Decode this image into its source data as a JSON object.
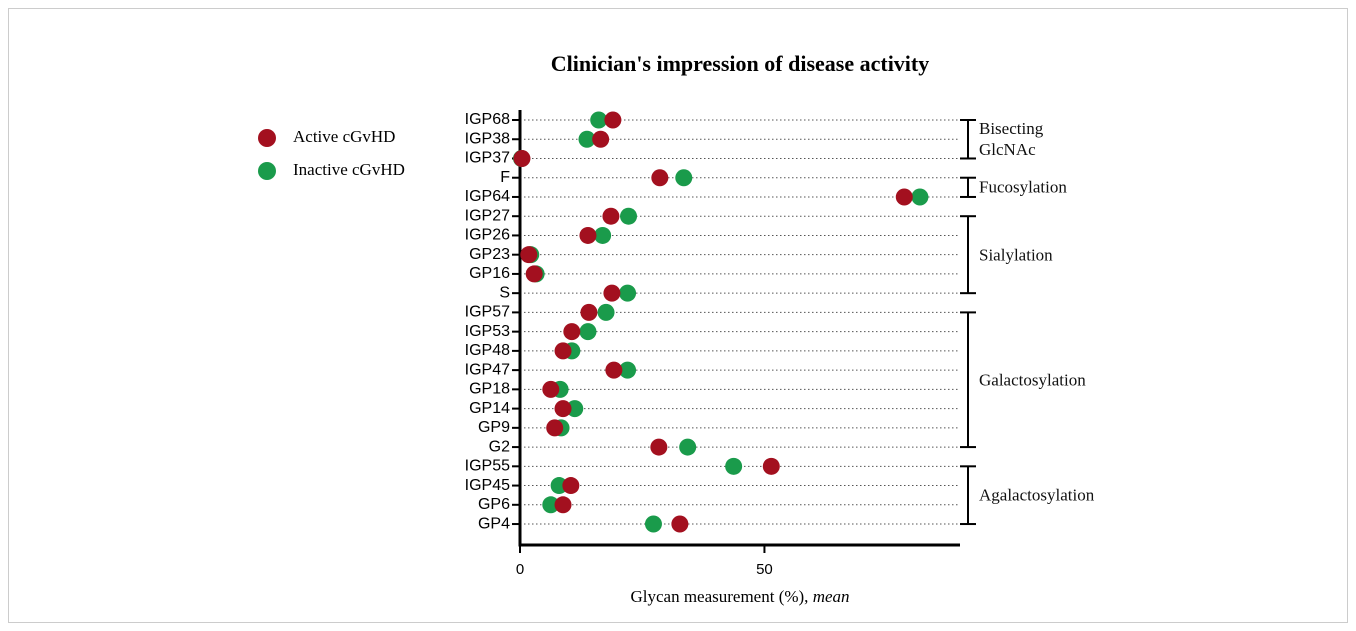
{
  "chart_data": {
    "type": "dot",
    "title": "Clinician's impression of disease activity",
    "x_label": "Glycan measurement (%),",
    "x_label_stat": "mean",
    "categories": [
      "IGP68",
      "IGP38",
      "IGP37",
      "F",
      "IGP64",
      "IGP27",
      "IGP26",
      "GP23",
      "GP16",
      "S",
      "IGP57",
      "IGP53",
      "IGP48",
      "IGP47",
      "GP18",
      "GP14",
      "GP9",
      "G2",
      "IGP55",
      "IGP45",
      "GP6",
      "GP4"
    ],
    "series": [
      {
        "name": "Inactive cGvHD",
        "color": "#1a9b4b",
        "values": [
          16.1,
          13.7,
          0.3,
          33.5,
          81.8,
          22.2,
          16.9,
          2.2,
          3.3,
          22.0,
          17.6,
          13.9,
          10.6,
          22.0,
          8.2,
          11.2,
          8.4,
          34.3,
          43.7,
          8.0,
          6.3,
          27.3
        ]
      },
      {
        "name": "Active cGvHD",
        "color": "#a3101f",
        "values": [
          19.0,
          16.5,
          0.4,
          28.6,
          78.6,
          18.6,
          13.9,
          1.8,
          2.9,
          18.8,
          14.1,
          10.6,
          8.8,
          19.2,
          6.3,
          8.8,
          7.1,
          28.4,
          51.4,
          10.4,
          8.8,
          32.7
        ]
      }
    ],
    "legend_order": [
      "Active cGvHD",
      "Inactive cGvHD"
    ],
    "xlim": [
      0,
      90
    ],
    "xticks": [
      0,
      50
    ],
    "grid": true,
    "groups": [
      {
        "label": "Bisecting GlcNAc",
        "first": "IGP68",
        "last": "IGP37"
      },
      {
        "label": "Fucosylation",
        "first": "F",
        "last": "IGP64"
      },
      {
        "label": "Sialylation",
        "first": "IGP27",
        "last": "S"
      },
      {
        "label": "Galactosylation",
        "first": "IGP57",
        "last": "G2"
      },
      {
        "label": "Agalactosylation",
        "first": "IGP55",
        "last": "GP4"
      }
    ]
  }
}
